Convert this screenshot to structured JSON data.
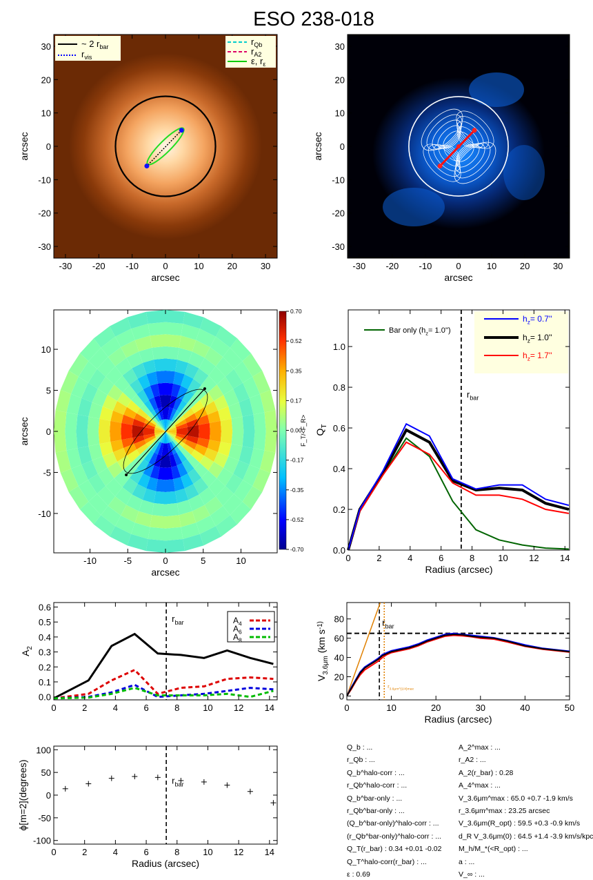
{
  "title": "ESO 238-018",
  "panel_image_left": {
    "xlabel": "arcsec",
    "ylabel": "arcsec",
    "xticks": [
      -30,
      -20,
      -10,
      0,
      10,
      20,
      30
    ],
    "yticks": [
      -30,
      -20,
      -10,
      0,
      10,
      20,
      30
    ],
    "range": [
      -33.5,
      33.5
    ],
    "legend_left": [
      "~ 2 r_bar",
      "r_vis"
    ],
    "legend_right": [
      "r_Qb",
      "r_A2",
      "ε, r_ε"
    ],
    "circle_radius": 15,
    "bar_ends": [
      [
        4.8,
        4.8
      ],
      [
        -5.6,
        -5.9
      ]
    ],
    "ellipse": {
      "center": [
        0,
        0
      ],
      "semi_major": 7.6,
      "semi_minor": 1.7,
      "angle_deg": 45
    }
  },
  "panel_image_right": {
    "xlabel": "arcsec",
    "ylabel": "arcsec",
    "xticks": [
      -30,
      -20,
      -10,
      0,
      10,
      20,
      30
    ],
    "yticks": [
      -30,
      -20,
      -10,
      0,
      10,
      20,
      30
    ],
    "range": [
      -33.5,
      33.5
    ],
    "circle_radius": 15,
    "bar_ends": [
      [
        4.8,
        4.8
      ],
      [
        -5.6,
        -5.9
      ]
    ]
  },
  "panel_polar": {
    "xlabel": "arcsec",
    "ylabel": "arcsec",
    "xticks": [
      -10,
      -5,
      0,
      5,
      10
    ],
    "yticks": [
      -10,
      -5,
      0,
      5,
      10
    ],
    "range": [
      -14.8,
      14.8
    ],
    "disk_radius": 14.8,
    "colorbar_label": "F_T/<F_R>",
    "colorbar_ticks": [
      "0.70",
      "0.52",
      "0.35",
      "0.17",
      "0.00",
      "-0.17",
      "-0.35",
      "-0.52",
      "-0.70"
    ],
    "bar_line": [
      [
        5.2,
        5.2
      ],
      [
        -5.2,
        -5.3
      ]
    ],
    "ellipse": {
      "semi_major": 7.5,
      "semi_minor": 2.2,
      "angle_deg": 45
    }
  },
  "chart_data": [
    {
      "type": "line",
      "id": "qt",
      "xlabel": "Radius (arcsec)",
      "ylabel": "Q_T",
      "xlim": [
        0,
        14.3
      ],
      "ylim": [
        0,
        1.18
      ],
      "xticks": [
        0,
        2,
        4,
        6,
        8,
        10,
        12,
        14
      ],
      "yticks": [
        0.0,
        0.2,
        0.4,
        0.6,
        0.8,
        1.0
      ],
      "vline": {
        "x": 7.3,
        "label": "r_bar"
      },
      "series": [
        {
          "name": "h_z= 0.7''",
          "color": "#0000ff",
          "x": [
            0,
            0.75,
            2.25,
            3.75,
            5.25,
            6.75,
            8.25,
            9.75,
            11.25,
            12.75,
            14.25
          ],
          "y": [
            0.0,
            0.2,
            0.39,
            0.62,
            0.56,
            0.35,
            0.3,
            0.32,
            0.32,
            0.25,
            0.22
          ]
        },
        {
          "name": "h_z= 1.0''",
          "color": "#000000",
          "x": [
            0,
            0.75,
            2.25,
            3.75,
            5.25,
            6.75,
            8.25,
            9.75,
            11.25,
            12.75,
            14.25
          ],
          "y": [
            0.0,
            0.2,
            0.38,
            0.59,
            0.53,
            0.34,
            0.295,
            0.305,
            0.295,
            0.23,
            0.2
          ]
        },
        {
          "name": "h_z= 1.7''",
          "color": "#ff0000",
          "x": [
            0,
            0.75,
            2.25,
            3.75,
            5.25,
            6.75,
            8.25,
            9.75,
            11.25,
            12.75,
            14.25
          ],
          "y": [
            0.0,
            0.19,
            0.37,
            0.53,
            0.47,
            0.33,
            0.27,
            0.27,
            0.25,
            0.2,
            0.18
          ]
        },
        {
          "name": "Bar only (h_z= 1.0'')",
          "color": "#006400",
          "x": [
            0,
            0.75,
            2.25,
            3.75,
            5.25,
            6.75,
            8.25,
            9.75,
            11.25,
            12.75,
            14.25
          ],
          "y": [
            0.0,
            0.19,
            0.37,
            0.55,
            0.46,
            0.24,
            0.1,
            0.05,
            0.025,
            0.01,
            0.005
          ]
        }
      ]
    },
    {
      "type": "line",
      "id": "a2",
      "xlabel": "",
      "ylabel": "A_2",
      "xlim": [
        0,
        14.5
      ],
      "ylim": [
        -0.02,
        0.63
      ],
      "xticks": [
        0,
        2,
        4,
        6,
        8,
        10,
        12,
        14
      ],
      "yticks": [
        0.0,
        0.1,
        0.2,
        0.3,
        0.4,
        0.5,
        0.6
      ],
      "vline": {
        "x": 7.3,
        "label": "r_bar"
      },
      "series": [
        {
          "name": "A_2",
          "color": "#000000",
          "dash": false,
          "x": [
            0,
            2.25,
            3.75,
            5.25,
            6.75,
            8.25,
            9.75,
            11.25,
            12.75,
            14.25
          ],
          "y": [
            -0.01,
            0.11,
            0.34,
            0.42,
            0.29,
            0.28,
            0.26,
            0.31,
            0.26,
            0.22
          ]
        },
        {
          "name": "A_4",
          "color": "#dd0000",
          "dash": true,
          "x": [
            0,
            2.25,
            3.75,
            5.25,
            6.75,
            8.25,
            9.75,
            11.25,
            12.75,
            14.25
          ],
          "y": [
            -0.01,
            0.02,
            0.11,
            0.18,
            0.02,
            0.06,
            0.07,
            0.12,
            0.13,
            0.12
          ]
        },
        {
          "name": "A_6",
          "color": "#0000dd",
          "dash": true,
          "x": [
            0,
            2.25,
            3.75,
            5.25,
            6.75,
            8.25,
            9.75,
            11.25,
            12.75,
            14.25
          ],
          "y": [
            -0.01,
            0.0,
            0.03,
            0.08,
            0.0,
            0.01,
            0.02,
            0.04,
            0.06,
            0.05
          ]
        },
        {
          "name": "A_8",
          "color": "#00bb00",
          "dash": true,
          "x": [
            0,
            2.25,
            3.75,
            5.25,
            6.75,
            8.25,
            9.75,
            11.25,
            12.75,
            14.25
          ],
          "y": [
            -0.01,
            -0.005,
            0.02,
            0.06,
            0.01,
            0.01,
            0.01,
            0.02,
            0.0,
            0.04
          ]
        }
      ]
    },
    {
      "type": "line",
      "id": "vel",
      "xlabel": "Radius (arcsec)",
      "ylabel": "V_3.6μm (km s^-1)",
      "xlim": [
        0,
        50
      ],
      "ylim": [
        -4,
        97
      ],
      "xticks": [
        0,
        10,
        20,
        30,
        40,
        50
      ],
      "yticks": [
        0,
        20,
        40,
        60,
        80
      ],
      "vline": {
        "x": 7.3,
        "label": "r_bar"
      },
      "hline": {
        "y": 65
      },
      "vline2": {
        "x": 8.4,
        "label": "r_3.6μm^{1/4}max"
      },
      "series": [
        {
          "name": "curve_black",
          "color": "#000000",
          "x": [
            0,
            1,
            2,
            3,
            4,
            5,
            6,
            7,
            8,
            9,
            10,
            12,
            14,
            16,
            18,
            20,
            22,
            24,
            26,
            28,
            30,
            33,
            36,
            40,
            44,
            48,
            50
          ],
          "y": [
            0,
            8,
            16,
            24,
            29,
            32,
            35,
            38,
            42,
            44,
            46,
            48,
            50,
            53,
            57,
            60,
            63,
            64,
            63.5,
            62,
            61,
            60,
            57,
            52,
            49,
            47,
            46
          ]
        },
        {
          "name": "curve_blue",
          "color": "#0000ff",
          "x": [
            0,
            1,
            2,
            3,
            4,
            5,
            6,
            7,
            8,
            9,
            10,
            12,
            14,
            16,
            18,
            20,
            22,
            24,
            26,
            28,
            30,
            33,
            36,
            40,
            44,
            48,
            50
          ],
          "y": [
            0,
            9,
            17,
            25,
            30,
            33,
            36,
            39,
            43,
            45,
            47,
            49,
            51,
            54,
            58,
            61,
            64,
            65,
            64,
            63,
            62,
            60.5,
            57.5,
            53,
            49.5,
            47.5,
            46.5
          ]
        },
        {
          "name": "curve_red",
          "color": "#ff0000",
          "x": [
            0,
            1,
            2,
            3,
            4,
            5,
            6,
            7,
            8,
            9,
            10,
            12,
            14,
            16,
            18,
            20,
            22,
            24,
            26,
            28,
            30,
            33,
            36,
            40,
            44,
            48,
            50
          ],
          "y": [
            0,
            7,
            15,
            22,
            27,
            30,
            33,
            36,
            40,
            43,
            45,
            47,
            49,
            52,
            56,
            59,
            62,
            63,
            62.5,
            61.5,
            60,
            59,
            56,
            51.5,
            48.5,
            46.5,
            45.5
          ]
        },
        {
          "name": "linear_orange",
          "color": "#e08000",
          "x": [
            0,
            7.5
          ],
          "y": [
            0,
            97
          ]
        }
      ]
    },
    {
      "type": "scatter",
      "id": "phase",
      "xlabel": "Radius (arcsec)",
      "ylabel": "ϕ[m=2](degrees)",
      "xlim": [
        0,
        14.5
      ],
      "ylim": [
        -108,
        108
      ],
      "xticks": [
        0,
        2,
        4,
        6,
        8,
        10,
        12,
        14
      ],
      "yticks": [
        -100,
        -50,
        0,
        50,
        100
      ],
      "vline": {
        "x": 7.3,
        "label": "r_bar"
      },
      "series": [
        {
          "name": "phase",
          "color": "#000000",
          "x": [
            0.75,
            2.25,
            3.75,
            5.25,
            6.75,
            8.25,
            9.75,
            11.25,
            12.75,
            14.25
          ],
          "y": [
            14,
            25,
            37,
            41,
            39,
            32,
            29,
            22,
            8,
            -17
          ]
        }
      ]
    }
  ],
  "params_left": [
    "Q_b : ...",
    "r_Qb : ...",
    "Q_b^halo-corr : ...",
    "r_Qb^halo-corr : ...",
    "Q_b^bar-only : ...",
    "r_Qb^bar-only : ...",
    "(Q_b^bar-only)^halo-corr : ...",
    "(r_Qb^bar-only)^halo-corr : ...",
    "Q_T(r_bar) :  0.34 +0.01 -0.02",
    "Q_T^halo-corr(r_bar) : ...",
    "ε :  0.69"
  ],
  "params_right": [
    "A_2^max : ...",
    "r_A2 : ...",
    "A_2(r_bar) :  0.28",
    "A_4^max : ...",
    "V_3.6μm^max :  65.0 +0.7 -1.9 km/s",
    "r_3.6μm^max :  23.25 arcsec",
    "V_3.6μm(R_opt) :  59.5 +0.3 -0.9 km/s",
    "d_R V_3.6μm(0) :  64.5 +1.4 -3.9 km/s/kpc",
    "M_h/M_*(<R_opt) : ...",
    "a : ...",
    "V_∞ : ..."
  ]
}
